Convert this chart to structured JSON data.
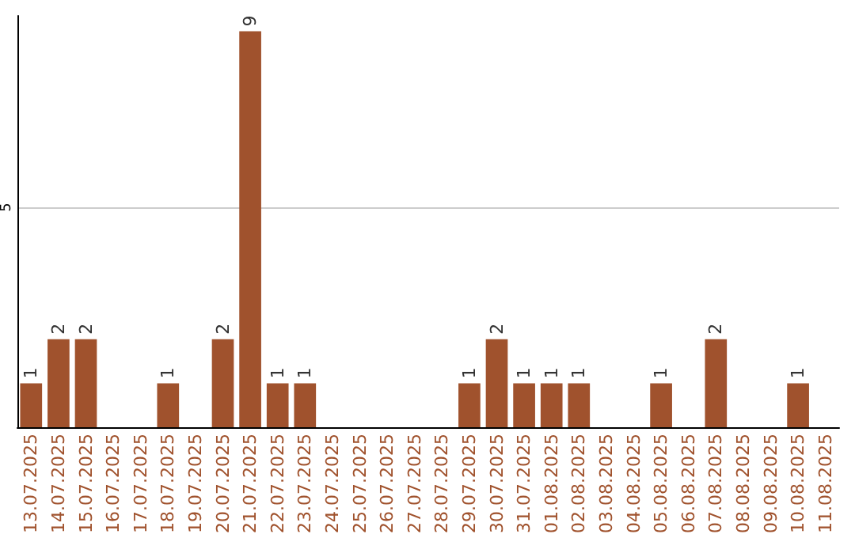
{
  "chart_data": {
    "type": "bar",
    "categories": [
      "13.07.2025",
      "14.07.2025",
      "15.07.2025",
      "16.07.2025",
      "17.07.2025",
      "18.07.2025",
      "19.07.2025",
      "20.07.2025",
      "21.07.2025",
      "22.07.2025",
      "23.07.2025",
      "24.07.2025",
      "25.07.2025",
      "26.07.2025",
      "27.07.2025",
      "28.07.2025",
      "29.07.2025",
      "30.07.2025",
      "31.07.2025",
      "01.08.2025",
      "02.08.2025",
      "03.08.2025",
      "04.08.2025",
      "05.08.2025",
      "06.08.2025",
      "07.08.2025",
      "08.08.2025",
      "09.08.2025",
      "10.08.2025",
      "11.08.2025"
    ],
    "values": [
      1,
      2,
      2,
      0,
      0,
      1,
      0,
      2,
      9,
      1,
      1,
      0,
      0,
      0,
      0,
      0,
      1,
      2,
      1,
      1,
      1,
      0,
      0,
      1,
      0,
      2,
      0,
      0,
      1,
      0
    ],
    "value_labels": [
      "1",
      "2",
      "2",
      null,
      null,
      "1",
      null,
      "2",
      "9",
      "1",
      "1",
      null,
      null,
      null,
      null,
      null,
      "1",
      "2",
      "1",
      "1",
      "1",
      null,
      null,
      "1",
      null,
      "2",
      null,
      null,
      "1",
      null
    ],
    "color": "#a0522d",
    "ylim": [
      0,
      9.35
    ],
    "yticks": [
      {
        "value": 0,
        "label": null
      },
      5
    ],
    "grid": "y"
  }
}
